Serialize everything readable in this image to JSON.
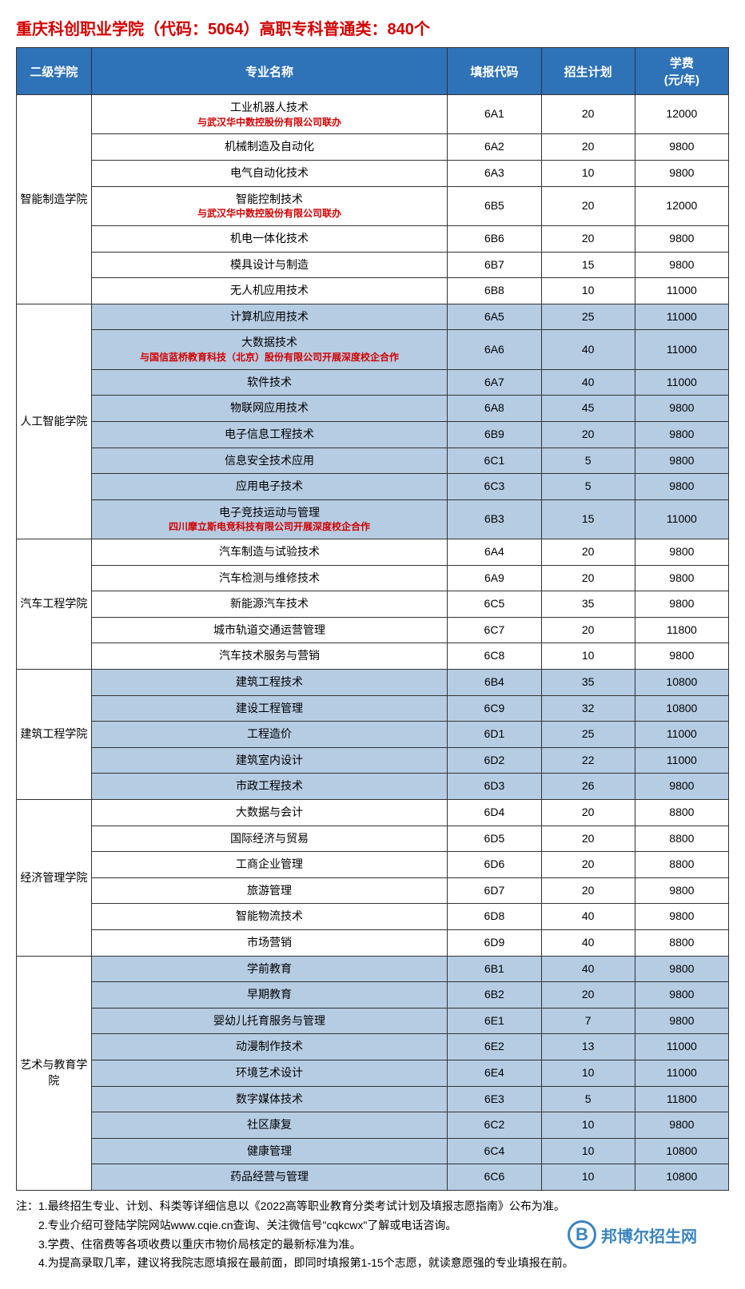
{
  "title": "重庆科创职业学院（代码：5064）高职专科普通类：840个",
  "headers": {
    "college": "二级学院",
    "major": "专业名称",
    "code": "填报代码",
    "plan": "招生计划",
    "fee": "学费\n(元/年)"
  },
  "styling": {
    "header_bg": "#2e72b8",
    "header_text_color": "#ffffff",
    "row_blue": "#b6cce3",
    "row_white": "#ffffff",
    "title_color": "#d20000",
    "sub_text_color": "#d20000",
    "border_color": "#333333",
    "title_fontsize": 20,
    "header_fontsize": 15,
    "cell_fontsize": 14,
    "sub_fontsize": 12,
    "col_widths": {
      "college": 80,
      "major": 380,
      "code": 100,
      "plan": 100,
      "fee": 100
    }
  },
  "groups": [
    {
      "college": "智能制造学院",
      "bg": "white",
      "rows": [
        {
          "major": "工业机器人技术",
          "sub": "与武汉华中数控股份有限公司联办",
          "code": "6A1",
          "plan": "20",
          "fee": "12000"
        },
        {
          "major": "机械制造及自动化",
          "code": "6A2",
          "plan": "20",
          "fee": "9800"
        },
        {
          "major": "电气自动化技术",
          "code": "6A3",
          "plan": "10",
          "fee": "9800"
        },
        {
          "major": "智能控制技术",
          "sub": "与武汉华中数控股份有限公司联办",
          "code": "6B5",
          "plan": "20",
          "fee": "12000"
        },
        {
          "major": "机电一体化技术",
          "code": "6B6",
          "plan": "20",
          "fee": "9800"
        },
        {
          "major": "模具设计与制造",
          "code": "6B7",
          "plan": "15",
          "fee": "9800"
        },
        {
          "major": "无人机应用技术",
          "code": "6B8",
          "plan": "10",
          "fee": "11000"
        }
      ]
    },
    {
      "college": "人工智能学院",
      "bg": "blue",
      "rows": [
        {
          "major": "计算机应用技术",
          "code": "6A5",
          "plan": "25",
          "fee": "11000"
        },
        {
          "major": "大数据技术",
          "sub": "与国信蓝桥教育科技（北京）股份有限公司开展深度校企合作",
          "code": "6A6",
          "plan": "40",
          "fee": "11000"
        },
        {
          "major": "软件技术",
          "code": "6A7",
          "plan": "40",
          "fee": "11000"
        },
        {
          "major": "物联网应用技术",
          "code": "6A8",
          "plan": "45",
          "fee": "9800"
        },
        {
          "major": "电子信息工程技术",
          "code": "6B9",
          "plan": "20",
          "fee": "9800"
        },
        {
          "major": "信息安全技术应用",
          "code": "6C1",
          "plan": "5",
          "fee": "9800"
        },
        {
          "major": "应用电子技术",
          "code": "6C3",
          "plan": "5",
          "fee": "9800"
        },
        {
          "major": "电子竞技运动与管理",
          "sub": "四川摩立斯电竞科技有限公司开展深度校企合作",
          "code": "6B3",
          "plan": "15",
          "fee": "11000"
        }
      ]
    },
    {
      "college": "汽车工程学院",
      "bg": "white",
      "rows": [
        {
          "major": "汽车制造与试验技术",
          "code": "6A4",
          "plan": "20",
          "fee": "9800"
        },
        {
          "major": "汽车检测与维修技术",
          "code": "6A9",
          "plan": "20",
          "fee": "9800"
        },
        {
          "major": "新能源汽车技术",
          "code": "6C5",
          "plan": "35",
          "fee": "9800"
        },
        {
          "major": "城市轨道交通运营管理",
          "code": "6C7",
          "plan": "20",
          "fee": "11800"
        },
        {
          "major": "汽车技术服务与营销",
          "code": "6C8",
          "plan": "10",
          "fee": "9800"
        }
      ]
    },
    {
      "college": "建筑工程学院",
      "bg": "blue",
      "rows": [
        {
          "major": "建筑工程技术",
          "code": "6B4",
          "plan": "35",
          "fee": "10800"
        },
        {
          "major": "建设工程管理",
          "code": "6C9",
          "plan": "32",
          "fee": "10800"
        },
        {
          "major": "工程造价",
          "code": "6D1",
          "plan": "25",
          "fee": "11000"
        },
        {
          "major": "建筑室内设计",
          "code": "6D2",
          "plan": "22",
          "fee": "11000"
        },
        {
          "major": "市政工程技术",
          "code": "6D3",
          "plan": "26",
          "fee": "9800"
        }
      ]
    },
    {
      "college": "经济管理学院",
      "bg": "white",
      "rows": [
        {
          "major": "大数据与会计",
          "code": "6D4",
          "plan": "20",
          "fee": "8800"
        },
        {
          "major": "国际经济与贸易",
          "code": "6D5",
          "plan": "20",
          "fee": "8800"
        },
        {
          "major": "工商企业管理",
          "code": "6D6",
          "plan": "20",
          "fee": "8800"
        },
        {
          "major": "旅游管理",
          "code": "6D7",
          "plan": "20",
          "fee": "9800"
        },
        {
          "major": "智能物流技术",
          "code": "6D8",
          "plan": "40",
          "fee": "9800"
        },
        {
          "major": "市场营销",
          "code": "6D9",
          "plan": "40",
          "fee": "8800"
        }
      ]
    },
    {
      "college": "艺术与教育学院",
      "bg": "blue",
      "rows": [
        {
          "major": "学前教育",
          "code": "6B1",
          "plan": "40",
          "fee": "9800"
        },
        {
          "major": "早期教育",
          "code": "6B2",
          "plan": "20",
          "fee": "9800"
        },
        {
          "major": "婴幼儿托育服务与管理",
          "code": "6E1",
          "plan": "7",
          "fee": "9800"
        },
        {
          "major": "动漫制作技术",
          "code": "6E2",
          "plan": "13",
          "fee": "11000"
        },
        {
          "major": "环境艺术设计",
          "code": "6E4",
          "plan": "10",
          "fee": "11000"
        },
        {
          "major": "数字媒体技术",
          "code": "6E3",
          "plan": "5",
          "fee": "11800"
        },
        {
          "major": "社区康复",
          "code": "6C2",
          "plan": "10",
          "fee": "9800"
        },
        {
          "major": "健康管理",
          "code": "6C4",
          "plan": "10",
          "fee": "10800"
        },
        {
          "major": "药品经营与管理",
          "code": "6C6",
          "plan": "10",
          "fee": "10800"
        }
      ]
    }
  ],
  "notes": [
    "注：1.最终招生专业、计划、科类等详细信息以《2022高等职业教育分类考试计划及填报志愿指南》公布为准。",
    "　　2.专业介绍可登陆学院网站www.cqie.cn查询、关注微信号\"cqkcwx\"了解或电话咨询。",
    "　　3.学费、住宿费等各项收费以重庆市物价局核定的最新标准为准。",
    "　　4.为提高录取几率，建议将我院志愿填报在最前面，即同时填报第1-15个志愿，就读意愿强的专业填报在前。"
  ],
  "watermark": {
    "icon": "B",
    "text": "邦博尔招生网"
  }
}
